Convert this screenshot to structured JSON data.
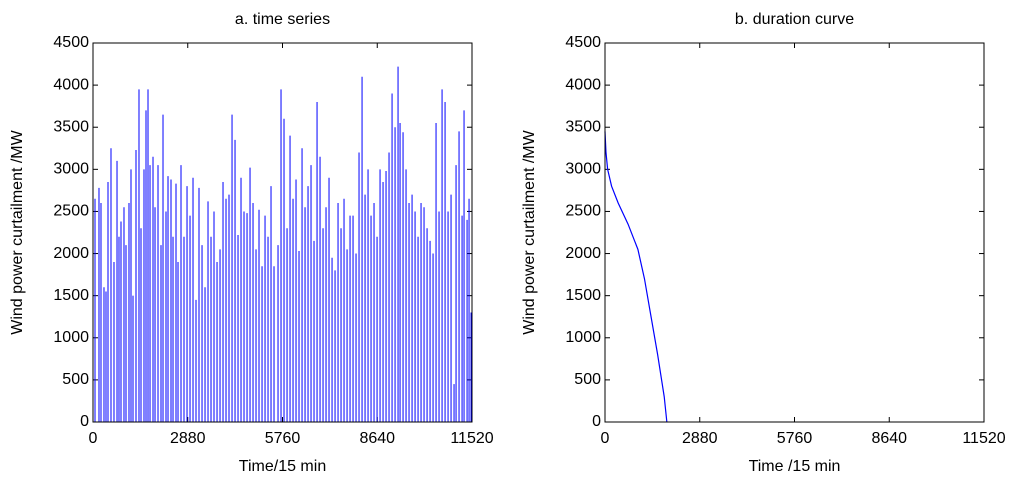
{
  "chart_data": [
    {
      "type": "stem",
      "title": "a. time series",
      "xlabel": "Time/15 min",
      "ylabel": "Wind power curtailment /MW",
      "color": "#0000ff",
      "xlim": [
        0,
        11520
      ],
      "ylim": [
        0,
        4500
      ],
      "xticks": [
        0,
        2880,
        5760,
        8640,
        11520
      ],
      "yticks": [
        0,
        500,
        1000,
        1500,
        2000,
        2500,
        3000,
        3500,
        4000,
        4500
      ],
      "x": [
        61,
        182,
        243,
        334,
        395,
        456,
        547,
        638,
        730,
        790,
        851,
        942,
        1003,
        1094,
        1155,
        1216,
        1307,
        1398,
        1459,
        1550,
        1611,
        1672,
        1733,
        1824,
        1885,
        1976,
        2067,
        2128,
        2219,
        2280,
        2371,
        2432,
        2523,
        2584,
        2675,
        2766,
        2858,
        2949,
        3040,
        3131,
        3222,
        3314,
        3405,
        3496,
        3587,
        3678,
        3770,
        3861,
        3952,
        4043,
        4134,
        4226,
        4317,
        4408,
        4499,
        4590,
        4682,
        4773,
        4864,
        4955,
        5046,
        5138,
        5229,
        5320,
        5411,
        5502,
        5624,
        5715,
        5806,
        5898,
        5989,
        6080,
        6171,
        6262,
        6354,
        6445,
        6536,
        6627,
        6718,
        6810,
        6901,
        6992,
        7083,
        7174,
        7266,
        7357,
        7448,
        7539,
        7630,
        7722,
        7813,
        7904,
        7995,
        8086,
        8178,
        8269,
        8360,
        8451,
        8542,
        8634,
        8725,
        8816,
        8907,
        8998,
        9090,
        9181,
        9272,
        9333,
        9424,
        9515,
        9606,
        9698,
        9789,
        9880,
        9971,
        10062,
        10154,
        10245,
        10336,
        10427,
        10518,
        10610,
        10701,
        10792,
        10883,
        10974,
        11035,
        11126,
        11218,
        11278,
        11370,
        11430,
        11491
      ],
      "values": [
        2650,
        2780,
        2600,
        1600,
        1550,
        2850,
        3250,
        1900,
        3100,
        2200,
        2380,
        2550,
        2100,
        2600,
        3000,
        1500,
        3230,
        3950,
        2300,
        3000,
        3700,
        3950,
        3050,
        3150,
        2550,
        3050,
        2100,
        3650,
        2500,
        2920,
        2880,
        2200,
        2830,
        1900,
        3050,
        2200,
        2800,
        2450,
        2900,
        1450,
        2780,
        2100,
        1600,
        2620,
        2200,
        2500,
        1900,
        2050,
        2850,
        2650,
        2700,
        3650,
        3350,
        2220,
        2900,
        2500,
        2480,
        3020,
        2600,
        2050,
        2520,
        1850,
        2450,
        2200,
        2800,
        1850,
        2100,
        3950,
        3600,
        2300,
        3400,
        2650,
        2880,
        2030,
        3250,
        2550,
        2800,
        3050,
        2150,
        3800,
        3150,
        2300,
        2550,
        2900,
        1950,
        1800,
        2600,
        2300,
        2650,
        2050,
        2450,
        2450,
        2000,
        3200,
        4100,
        2700,
        3000,
        2450,
        2600,
        2200,
        3000,
        2850,
        2980,
        3200,
        3900,
        3500,
        4220,
        3550,
        3440,
        3000,
        2600,
        2700,
        2500,
        2200,
        2600,
        2550,
        2300,
        2150,
        2000,
        3550,
        2500,
        3950,
        3800,
        2500,
        2700,
        450,
        3050,
        3450,
        2450,
        3700,
        2400,
        2650,
        1300
      ]
    },
    {
      "type": "line",
      "title": "b. duration curve",
      "xlabel": "Time /15 min",
      "ylabel": "Wind power curtailment /MW",
      "color": "#0000ff",
      "xlim": [
        0,
        11520
      ],
      "ylim": [
        0,
        4500
      ],
      "xticks": [
        0,
        2880,
        5760,
        8640,
        11520
      ],
      "yticks": [
        0,
        500,
        1000,
        1500,
        2000,
        2500,
        3000,
        3500,
        4000,
        4500
      ],
      "x": [
        0,
        30,
        80,
        200,
        400,
        700,
        1000,
        1200,
        1400,
        1600,
        1800,
        1880
      ],
      "values": [
        3450,
        3200,
        3000,
        2800,
        2600,
        2350,
        2050,
        1700,
        1250,
        800,
        300,
        0
      ]
    }
  ]
}
